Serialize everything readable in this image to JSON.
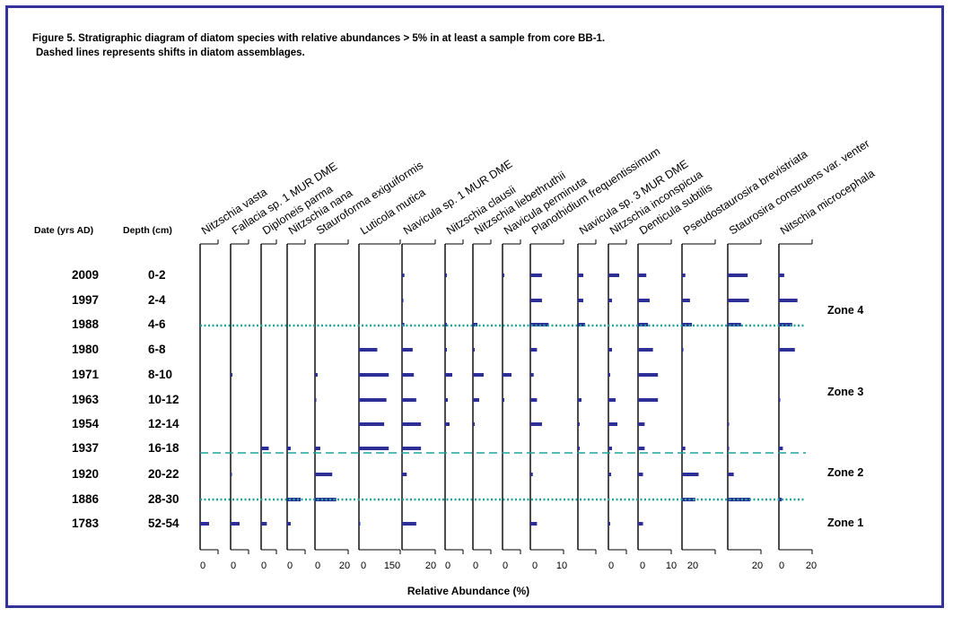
{
  "figure": {
    "title_line1": "Figure 5. Stratigraphic diagram of diatom species with relative abundances > 5% in at least a sample from core BB-1.",
    "title_line2": "Dashed lines represents shifts in diatom assemblages.",
    "date_header": "Date (yrs AD)",
    "depth_header": "Depth (cm)",
    "xlabel": "Relative Abundance (%)"
  },
  "colors": {
    "bar": "#2e2f96",
    "zone_line": "#1fa39b",
    "frame": "#33339a",
    "axis": "#000000"
  },
  "chart_data": {
    "type": "bar",
    "orientation": "horizontal",
    "subtype": "stratigraphic",
    "x_unit": "Relative Abundance (%)",
    "samples": [
      {
        "year": "2009",
        "depth": "0-2"
      },
      {
        "year": "1997",
        "depth": "2-4"
      },
      {
        "year": "1988",
        "depth": "4-6"
      },
      {
        "year": "1980",
        "depth": "6-8"
      },
      {
        "year": "1971",
        "depth": "8-10"
      },
      {
        "year": "1963",
        "depth": "10-12"
      },
      {
        "year": "1954",
        "depth": "12-14"
      },
      {
        "year": "1937",
        "depth": "16-18"
      },
      {
        "year": "1920",
        "depth": "20-22"
      },
      {
        "year": "1886",
        "depth": "28-30"
      },
      {
        "year": "1783",
        "depth": "52-54"
      }
    ],
    "series": [
      {
        "name": "Nitzschia vasta",
        "tick_labels": [
          "0"
        ],
        "xlim": [
          0,
          10
        ],
        "values": [
          0,
          0,
          0,
          0,
          0,
          0,
          0,
          0,
          0,
          0,
          5
        ]
      },
      {
        "name": "Fallacia sp. 1 MUR DME",
        "tick_labels": [
          "0"
        ],
        "xlim": [
          0,
          10
        ],
        "values": [
          0,
          0,
          0,
          0,
          1,
          0,
          0,
          0,
          0.5,
          0,
          5
        ]
      },
      {
        "name": "Diploneis parma",
        "tick_labels": [
          "0"
        ],
        "xlim": [
          0,
          8
        ],
        "values": [
          0,
          0,
          0,
          0,
          0,
          0,
          0,
          4,
          0,
          0,
          3
        ]
      },
      {
        "name": "Nitzschia nana",
        "tick_labels": [
          "0"
        ],
        "xlim": [
          0,
          10
        ],
        "values": [
          0,
          0,
          0,
          0,
          0,
          0,
          0,
          2,
          0,
          7.5,
          2
        ]
      },
      {
        "name": "Stauroforma exiguiformis",
        "tick_labels": [
          "0",
          "20"
        ],
        "xlim": [
          0,
          25
        ],
        "values": [
          0,
          0,
          0,
          0,
          2,
          0.5,
          0,
          4,
          13,
          16,
          0
        ]
      },
      {
        "name": "Luticola mutica",
        "tick_labels": [
          "0",
          "150"
        ],
        "xlim": [
          0,
          180
        ],
        "values": [
          0,
          0,
          0,
          80,
          130,
          120,
          110,
          130,
          0,
          0,
          3
        ]
      },
      {
        "name": "Navicula sp. 1 MUR DME",
        "tick_labels": [
          "20"
        ],
        "xlim": [
          0,
          28
        ],
        "values": [
          2,
          1,
          2,
          9,
          10,
          12,
          16,
          16,
          4,
          0,
          12
        ]
      },
      {
        "name": "Nitzschia clausii",
        "tick_labels": [
          "0"
        ],
        "xlim": [
          0,
          10
        ],
        "values": [
          1,
          0,
          1,
          1,
          4,
          1.5,
          2.5,
          0,
          0,
          0,
          0
        ]
      },
      {
        "name": "Nitzschia liebethruthii",
        "tick_labels": [
          "0"
        ],
        "xlim": [
          0,
          10
        ],
        "values": [
          0,
          0,
          2.5,
          1,
          6,
          3.5,
          1,
          0,
          0,
          0,
          0
        ]
      },
      {
        "name": "Navicula perminuta",
        "tick_labels": [
          "0"
        ],
        "xlim": [
          0,
          10
        ],
        "values": [
          1,
          0,
          0,
          0,
          5,
          1,
          0,
          0,
          0,
          0,
          0
        ]
      },
      {
        "name": "Planothidium frequentissimum",
        "tick_labels": [
          "0",
          "10"
        ],
        "xlim": [
          0,
          20
        ],
        "values": [
          7,
          7,
          11,
          4,
          2,
          4,
          7,
          0,
          1.5,
          0,
          4
        ]
      },
      {
        "name": "Navicula sp. 3 MUR DME",
        "tick_labels": [],
        "xlim": [
          0,
          10
        ],
        "values": [
          3,
          3,
          4,
          0,
          0,
          2,
          1,
          1,
          0,
          0,
          0
        ]
      },
      {
        "name": "Nitzschia inconspicua",
        "tick_labels": [
          "0"
        ],
        "xlim": [
          0,
          10
        ],
        "values": [
          6,
          2,
          0,
          2,
          1,
          4,
          5,
          2,
          1.5,
          0,
          1
        ]
      },
      {
        "name": "Denticula subtilis",
        "tick_labels": [
          "0",
          "10"
        ],
        "xlim": [
          0,
          20
        ],
        "values": [
          5,
          7,
          6,
          9,
          12,
          12,
          4,
          4,
          3,
          0,
          3
        ]
      },
      {
        "name": "Pseudostaurosira brevistriata",
        "tick_labels": [
          "20"
        ],
        "xlim": [
          0,
          50
        ],
        "values": [
          5,
          12,
          15,
          2,
          0,
          0,
          0,
          5,
          25,
          20,
          0
        ]
      },
      {
        "name": "Staurosira construens var. venter",
        "tick_labels": [
          "20"
        ],
        "xlim": [
          0,
          50
        ],
        "values": [
          30,
          32,
          20,
          0,
          0,
          0,
          1,
          2,
          9,
          34,
          0
        ]
      },
      {
        "name": "Nitschia microcephala",
        "tick_labels": [
          "0",
          "20"
        ],
        "xlim": [
          0,
          25
        ],
        "values": [
          4,
          14,
          10,
          12,
          0,
          1,
          0,
          3,
          0,
          2,
          0
        ]
      }
    ],
    "zones": [
      {
        "label": "Zone 4"
      },
      {
        "label": "Zone 3"
      },
      {
        "label": "Zone 2"
      },
      {
        "label": "Zone 1"
      }
    ],
    "zone_boundaries": [
      {
        "between": [
          "1988",
          "1980"
        ],
        "style": "dotted"
      },
      {
        "between": [
          "1937",
          "1920"
        ],
        "style": "dashed"
      },
      {
        "between": [
          "1886",
          "1783"
        ],
        "style": "dotted"
      }
    ]
  }
}
